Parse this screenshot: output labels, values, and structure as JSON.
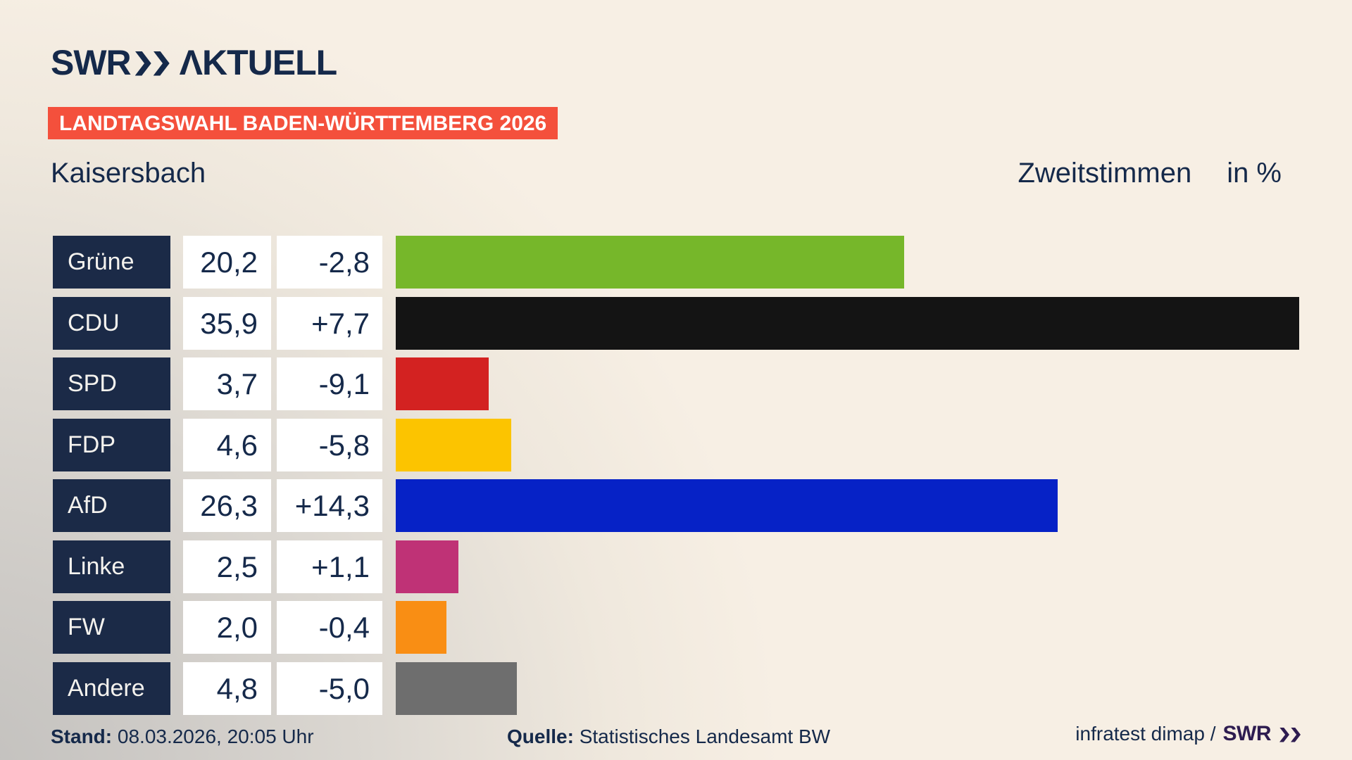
{
  "header": {
    "logo": {
      "brand": "SWR",
      "suffix": "AKTUELL"
    },
    "banner": "LANDTAGSWAHL BADEN-WÜRTTEMBERG 2026",
    "title": "Kaisersbach",
    "subtitle": "Zweitstimmen",
    "unit": "in %"
  },
  "chart_data": {
    "type": "bar",
    "orientation": "horizontal",
    "title": "Kaisersbach",
    "subtitle": "Zweitstimmen in %",
    "xlim": [
      0,
      36
    ],
    "grid": false,
    "legend": false,
    "categories": [
      "Grüne",
      "CDU",
      "SPD",
      "FDP",
      "AfD",
      "Linke",
      "FW",
      "Andere"
    ],
    "values": [
      20.2,
      35.9,
      3.7,
      4.6,
      26.3,
      2.5,
      2.0,
      4.8
    ],
    "changes": [
      -2.8,
      7.7,
      -9.1,
      -5.8,
      14.3,
      1.1,
      -0.4,
      -5.0
    ],
    "rows": [
      {
        "party": "Grüne",
        "value": 20.2,
        "value_label": "20,2",
        "change_label": "-2,8",
        "color": "#76b72a"
      },
      {
        "party": "CDU",
        "value": 35.9,
        "value_label": "35,9",
        "change_label": "+7,7",
        "color": "#141414"
      },
      {
        "party": "SPD",
        "value": 3.7,
        "value_label": "3,7",
        "change_label": "-9,1",
        "color": "#d32221"
      },
      {
        "party": "FDP",
        "value": 4.6,
        "value_label": "4,6",
        "change_label": "-5,8",
        "color": "#fcc400"
      },
      {
        "party": "AfD",
        "value": 26.3,
        "value_label": "26,3",
        "change_label": "+14,3",
        "color": "#0622c6"
      },
      {
        "party": "Linke",
        "value": 2.5,
        "value_label": "2,5",
        "change_label": "+1,1",
        "color": "#bf3276"
      },
      {
        "party": "FW",
        "value": 2.0,
        "value_label": "2,0",
        "change_label": "-0,4",
        "color": "#f98e14"
      },
      {
        "party": "Andere",
        "value": 4.8,
        "value_label": "4,8",
        "change_label": "-5,0",
        "color": "#6e6e6e"
      }
    ]
  },
  "footer": {
    "stand_label": "Stand:",
    "stand_value": "08.03.2026, 20:05 Uhr",
    "source_label": "Quelle:",
    "source_value": "Statistisches Landesamt BW",
    "credit_text": "infratest dimap /",
    "credit_brand": "SWR"
  },
  "icons": {
    "logo_arrows": "double-chevron-right"
  },
  "colors": {
    "navy": "#15294a",
    "label_cell_navy": "#1b2a47",
    "banner_red": "#f4503c",
    "background_cream": "#f7efe4",
    "background_gray": "#c5c3c0",
    "credit_brand_purple": "#2e1c50",
    "value_cell_white": "#ffffff"
  }
}
